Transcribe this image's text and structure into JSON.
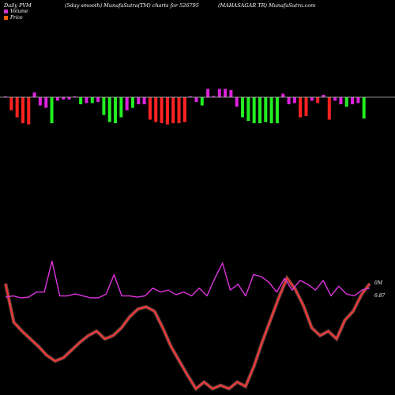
{
  "header": {
    "left": "Daily PVM",
    "center": "(5day smooth) MunafaSutra(TM) charts for 526795",
    "right": "(MAHASAGAR TR) MunafaSutra.com"
  },
  "legend": {
    "volume_label": "Volume",
    "price_label": "Price",
    "volume_color": "#cc33cc",
    "price_color": "#ff6600"
  },
  "chart_data": {
    "type": "bar",
    "colors": {
      "up": "#22ee22",
      "down": "#ff2222",
      "neutral": "#dd22dd",
      "price": "#ff3333",
      "volume": "#dd33dd"
    },
    "bars": [
      {
        "c": "m",
        "v": 0.0
      },
      {
        "c": "r",
        "v": -0.55
      },
      {
        "c": "r",
        "v": -0.85
      },
      {
        "c": "r",
        "v": -1.1
      },
      {
        "c": "r",
        "v": -1.15
      },
      {
        "c": "m",
        "v": 0.2
      },
      {
        "c": "m",
        "v": -0.35
      },
      {
        "c": "m",
        "v": -0.45
      },
      {
        "c": "g",
        "v": -1.1
      },
      {
        "c": "m",
        "v": -0.15
      },
      {
        "c": "m",
        "v": -0.1
      },
      {
        "c": "m",
        "v": -0.1
      },
      {
        "c": "m",
        "v": 0.0
      },
      {
        "c": "g",
        "v": -0.3
      },
      {
        "c": "m",
        "v": -0.25
      },
      {
        "c": "g",
        "v": -0.25
      },
      {
        "c": "m",
        "v": -0.2
      },
      {
        "c": "g",
        "v": -0.75
      },
      {
        "c": "g",
        "v": -1.05
      },
      {
        "c": "g",
        "v": -1.1
      },
      {
        "c": "g",
        "v": -0.85
      },
      {
        "c": "m",
        "v": -0.55
      },
      {
        "c": "g",
        "v": -0.45
      },
      {
        "c": "m",
        "v": -0.3
      },
      {
        "c": "m",
        "v": -0.3
      },
      {
        "c": "r",
        "v": -0.95
      },
      {
        "c": "r",
        "v": -1.05
      },
      {
        "c": "r",
        "v": -1.1
      },
      {
        "c": "r",
        "v": -1.15
      },
      {
        "c": "r",
        "v": -1.1
      },
      {
        "c": "r",
        "v": -1.1
      },
      {
        "c": "r",
        "v": -1.05
      },
      {
        "c": "m",
        "v": 0.0
      },
      {
        "c": "m",
        "v": -0.2
      },
      {
        "c": "g",
        "v": -0.35
      },
      {
        "c": "m",
        "v": 0.35
      },
      {
        "c": "m",
        "v": 0.05
      },
      {
        "c": "m",
        "v": 0.35
      },
      {
        "c": "m",
        "v": 0.35
      },
      {
        "c": "m",
        "v": 0.3
      },
      {
        "c": "m",
        "v": -0.4
      },
      {
        "c": "g",
        "v": -0.85
      },
      {
        "c": "g",
        "v": -1.0
      },
      {
        "c": "g",
        "v": -1.1
      },
      {
        "c": "g",
        "v": -1.1
      },
      {
        "c": "g",
        "v": -1.05
      },
      {
        "c": "g",
        "v": -1.1
      },
      {
        "c": "g",
        "v": -1.1
      },
      {
        "c": "m",
        "v": 0.15
      },
      {
        "c": "m",
        "v": -0.3
      },
      {
        "c": "m",
        "v": -0.25
      },
      {
        "c": "r",
        "v": -0.85
      },
      {
        "c": "r",
        "v": -0.8
      },
      {
        "c": "m",
        "v": -0.15
      },
      {
        "c": "r",
        "v": -0.25
      },
      {
        "c": "m",
        "v": 0.1
      },
      {
        "c": "r",
        "v": -0.95
      },
      {
        "c": "m",
        "v": -0.15
      },
      {
        "c": "m",
        "v": -0.3
      },
      {
        "c": "g",
        "v": -0.4
      },
      {
        "c": "m",
        "v": -0.3
      },
      {
        "c": "m",
        "v": -0.25
      },
      {
        "c": "g",
        "v": -0.9
      }
    ],
    "price": [
      0.95,
      0.6,
      0.52,
      0.45,
      0.38,
      0.3,
      0.25,
      0.28,
      0.35,
      0.42,
      0.48,
      0.52,
      0.45,
      0.48,
      0.55,
      0.65,
      0.72,
      0.74,
      0.7,
      0.55,
      0.38,
      0.25,
      0.12,
      0.0,
      0.06,
      0.0,
      0.03,
      0.0,
      0.06,
      0.02,
      0.2,
      0.42,
      0.62,
      0.82,
      1.0,
      0.9,
      0.75,
      0.55,
      0.48,
      0.52,
      0.45,
      0.62,
      0.7,
      0.85,
      0.95
    ],
    "volume": [
      0.02,
      0.05,
      0.0,
      0.02,
      0.15,
      0.15,
      0.95,
      0.05,
      0.05,
      0.1,
      0.05,
      0.0,
      0.0,
      0.1,
      0.6,
      0.05,
      0.05,
      0.02,
      0.05,
      0.25,
      0.15,
      0.2,
      0.08,
      0.15,
      0.05,
      0.25,
      0.05,
      0.5,
      0.9,
      0.2,
      0.35,
      0.05,
      0.6,
      0.55,
      0.4,
      0.15,
      0.5,
      0.2,
      0.45,
      0.35,
      0.2,
      0.45,
      0.05,
      0.3,
      0.1,
      0.05,
      0.2,
      0.25
    ],
    "annotations": {
      "volume_label": "0M",
      "price_label": "6.87"
    }
  }
}
